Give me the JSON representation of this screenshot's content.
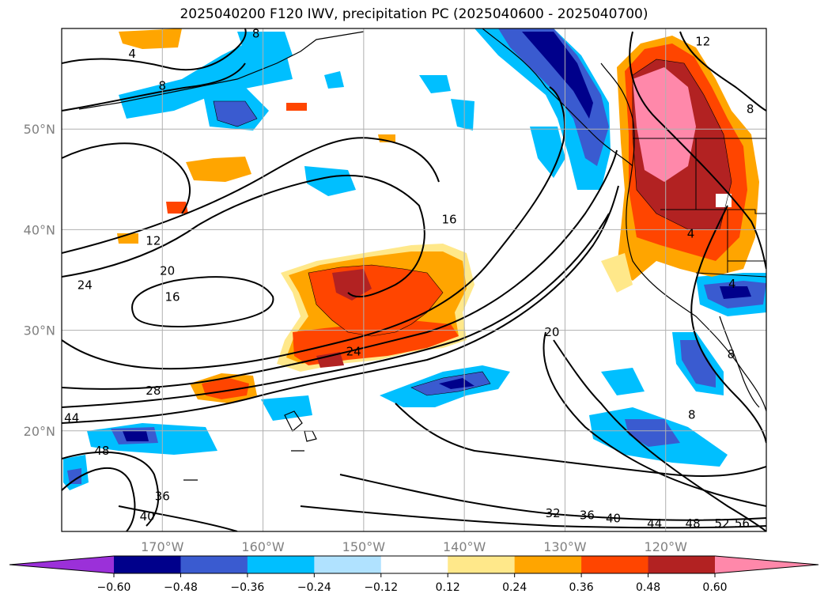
{
  "title": "2025040200 F120 IWV, precipitation PC (2025040600 - 2025040700)",
  "map": {
    "lon_range": [
      -180,
      -110
    ],
    "lat_range": [
      10,
      60
    ],
    "lat_ticks": [
      {
        "value": 20,
        "label": "20°N"
      },
      {
        "value": 30,
        "label": "30°N"
      },
      {
        "value": 40,
        "label": "40°N"
      },
      {
        "value": 50,
        "label": "50°N"
      }
    ],
    "lon_ticks": [
      {
        "value": -170,
        "label": "170°W"
      },
      {
        "value": -160,
        "label": "160°W"
      },
      {
        "value": -150,
        "label": "150°W"
      },
      {
        "value": -140,
        "label": "140°W"
      },
      {
        "value": -130,
        "label": "130°W"
      },
      {
        "value": -120,
        "label": "120°W"
      }
    ],
    "grid": true
  },
  "colorbar": {
    "colors": [
      "#9b30d9",
      "#00008b",
      "#3a5bd0",
      "#00bfff",
      "#b0e2ff",
      "#ffffff",
      "#ffe88a",
      "#ffa500",
      "#ff4500",
      "#b22222",
      "#ff88aa"
    ],
    "tick_labels": [
      "−0.60",
      "−0.48",
      "−0.36",
      "−0.24",
      "−0.12",
      "0.12",
      "0.24",
      "0.36",
      "0.48",
      "0.60"
    ],
    "extend": "both"
  },
  "contour_labels": [
    {
      "text": "4",
      "lon": -173,
      "lat": 57.5
    },
    {
      "text": "8",
      "lon": -170,
      "lat": 54.3
    },
    {
      "text": "12",
      "lon": -170.9,
      "lat": 38.9
    },
    {
      "text": "20",
      "lon": -169.5,
      "lat": 35.9
    },
    {
      "text": "16",
      "lon": -169,
      "lat": 33.3
    },
    {
      "text": "24",
      "lon": -177.7,
      "lat": 34.5
    },
    {
      "text": "24",
      "lon": -151,
      "lat": 27.9
    },
    {
      "text": "28",
      "lon": -170.9,
      "lat": 24.0
    },
    {
      "text": "44",
      "lon": -179,
      "lat": 21.3
    },
    {
      "text": "48",
      "lon": -176,
      "lat": 18.0
    },
    {
      "text": "36",
      "lon": -170,
      "lat": 13.5
    },
    {
      "text": "40",
      "lon": -171.5,
      "lat": 11.5
    },
    {
      "text": "16",
      "lon": -141.5,
      "lat": 41.0
    },
    {
      "text": "20",
      "lon": -131.3,
      "lat": 29.8
    },
    {
      "text": "32",
      "lon": -131.2,
      "lat": 11.8
    },
    {
      "text": "36",
      "lon": -127.8,
      "lat": 11.6
    },
    {
      "text": "40",
      "lon": -125.2,
      "lat": 11.3
    },
    {
      "text": "44",
      "lon": -121.1,
      "lat": 10.8
    },
    {
      "text": "48",
      "lon": -117.3,
      "lat": 10.8
    },
    {
      "text": "52",
      "lon": -114.4,
      "lat": 10.8
    },
    {
      "text": "56",
      "lon": -112.4,
      "lat": 10.8
    },
    {
      "text": "12",
      "lon": -116.3,
      "lat": 58.7
    },
    {
      "text": "8",
      "lon": -111.6,
      "lat": 52.0
    },
    {
      "text": "4",
      "lon": -113.4,
      "lat": 34.6
    },
    {
      "text": "4",
      "lon": -117.5,
      "lat": 39.6
    },
    {
      "text": "8",
      "lon": -113.5,
      "lat": 27.6
    },
    {
      "text": "8",
      "lon": -117.4,
      "lat": 21.6
    },
    {
      "text": "8",
      "lon": -160.7,
      "lat": 59.5
    }
  ]
}
